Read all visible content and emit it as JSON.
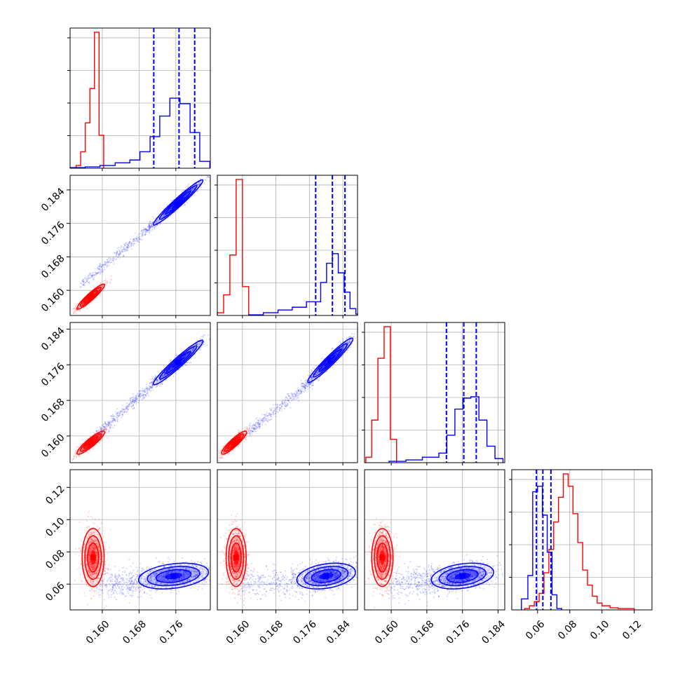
{
  "chart_data": {
    "type": "corner",
    "parameters": 4,
    "series": [
      {
        "name": "",
        "color": "#ff0000"
      },
      {
        "name": "",
        "color": "#0000ff"
      }
    ],
    "axes": {
      "p1": {
        "range": [
          0.153,
          0.1835
        ],
        "ticks": [
          "0.160",
          "0.168",
          "0.176"
        ],
        "tick_values": [
          0.16,
          0.168,
          0.176
        ]
      },
      "p2": {
        "range": [
          0.154,
          0.1875
        ],
        "ticks": [
          "0.160",
          "0.168",
          "0.176",
          "0.184"
        ],
        "tick_values": [
          0.16,
          0.168,
          0.176,
          0.184
        ]
      },
      "p3": {
        "range": [
          0.154,
          0.1855
        ],
        "ticks": [
          "0.160",
          "0.168",
          "0.176",
          "0.184"
        ],
        "tick_values": [
          0.16,
          0.168,
          0.176,
          0.184
        ]
      },
      "p4": {
        "range": [
          0.044,
          0.131
        ],
        "ticks": [
          "0.06",
          "0.08",
          "0.10",
          "0.12"
        ],
        "tick_values": [
          0.06,
          0.08,
          0.1,
          0.12
        ]
      }
    },
    "histograms": [
      {
        "param": "p1",
        "ymax": 1.0,
        "red": {
          "edges": [
            0.1543,
            0.1553,
            0.1563,
            0.1573,
            0.1583,
            0.1593,
            0.1603
          ],
          "counts": [
            0.02,
            0.12,
            0.33,
            0.58,
            0.99,
            0.24
          ]
        },
        "blue": {
          "edges": [
            0.153,
            0.1563,
            0.1595,
            0.1628,
            0.166,
            0.1682,
            0.1704,
            0.1725,
            0.1747,
            0.1769,
            0.1791,
            0.1812,
            0.1834
          ],
          "counts": [
            0.005,
            0.01,
            0.02,
            0.04,
            0.06,
            0.12,
            0.23,
            0.38,
            0.51,
            0.47,
            0.26,
            0.05
          ]
        },
        "quantiles": [
          0.1712,
          0.1767,
          0.1801
        ]
      },
      {
        "param": "p2",
        "ymax": 1.0,
        "red": {
          "edges": [
            0.154,
            0.1555,
            0.157,
            0.1585,
            0.16,
            0.1615
          ],
          "counts": [
            0.02,
            0.15,
            0.44,
            0.99,
            0.21
          ]
        },
        "blue": {
          "edges": [
            0.1615,
            0.165,
            0.1685,
            0.1719,
            0.1753,
            0.1787,
            0.1801,
            0.1815,
            0.1829,
            0.1843,
            0.1857,
            0.1871,
            0.1875
          ],
          "counts": [
            0.005,
            0.02,
            0.04,
            0.06,
            0.1,
            0.24,
            0.38,
            0.45,
            0.31,
            0.17,
            0.05,
            0.01
          ]
        },
        "quantiles": [
          0.1775,
          0.1815,
          0.1845
        ]
      },
      {
        "param": "p3",
        "ymax": 1.0,
        "red": {
          "edges": [
            0.1543,
            0.1556,
            0.157,
            0.1584,
            0.1598,
            0.1612
          ],
          "counts": [
            0.04,
            0.31,
            0.76,
            0.99,
            0.17
          ]
        },
        "blue": {
          "edges": [
            0.1595,
            0.1633,
            0.167,
            0.1707,
            0.1725,
            0.1743,
            0.1761,
            0.1779,
            0.1797,
            0.1815,
            0.1833,
            0.1851
          ],
          "counts": [
            0.01,
            0.02,
            0.04,
            0.07,
            0.2,
            0.39,
            0.47,
            0.48,
            0.31,
            0.12,
            0.03
          ]
        },
        "quantiles": [
          0.1724,
          0.1763,
          0.1791
        ]
      },
      {
        "param": "p4",
        "ymax": 1.0,
        "red": {
          "edges": [
            0.052,
            0.055,
            0.058,
            0.061,
            0.064,
            0.067,
            0.07,
            0.073,
            0.076,
            0.079,
            0.082,
            0.085,
            0.088,
            0.091,
            0.094,
            0.097,
            0.1,
            0.105,
            0.11,
            0.115,
            0.12
          ],
          "counts": [
            0.01,
            0.03,
            0.06,
            0.12,
            0.27,
            0.44,
            0.64,
            0.82,
            0.99,
            0.9,
            0.7,
            0.49,
            0.29,
            0.18,
            0.1,
            0.05,
            0.03,
            0.015,
            0.01,
            0.01
          ]
        },
        "blue": {
          "edges": [
            0.05,
            0.054,
            0.057,
            0.06,
            0.063,
            0.066,
            0.069,
            0.072,
            0.075
          ],
          "counts": [
            0.08,
            0.25,
            0.86,
            0.9,
            0.69,
            0.42,
            0.11,
            0.01
          ]
        },
        "quantiles": [
          0.0593,
          0.0633,
          0.0683
        ]
      }
    ],
    "pairs": [
      {
        "x": "p1",
        "y": "p2",
        "red": {
          "center": [
            0.1575,
            0.1585
          ],
          "sx": 0.0015,
          "sy": 0.0015,
          "rho": 0.93,
          "n": 700
        },
        "blue": {
          "center": [
            0.1765,
            0.181
          ],
          "sx": 0.0027,
          "sy": 0.0027,
          "rho": 0.97,
          "n": 1000
        },
        "blue_tail": {
          "from": [
            0.1555,
            0.1615
          ],
          "to": [
            0.1715,
            0.176
          ],
          "n": 350,
          "spread": 0.0006
        }
      },
      {
        "x": "p1",
        "y": "p3",
        "red": {
          "center": [
            0.1575,
            0.1585
          ],
          "sx": 0.0015,
          "sy": 0.0013,
          "rho": 0.9,
          "n": 700
        },
        "blue": {
          "center": [
            0.1765,
            0.1765
          ],
          "sx": 0.0027,
          "sy": 0.0025,
          "rho": 0.96,
          "n": 1000
        },
        "blue_tail": {
          "from": [
            0.1585,
            0.16
          ],
          "to": [
            0.172,
            0.1725
          ],
          "n": 350,
          "spread": 0.0006
        }
      },
      {
        "x": "p2",
        "y": "p3",
        "red": {
          "center": [
            0.158,
            0.1585
          ],
          "sx": 0.0015,
          "sy": 0.0013,
          "rho": 0.9,
          "n": 700
        },
        "blue": {
          "center": [
            0.181,
            0.177
          ],
          "sx": 0.0027,
          "sy": 0.0025,
          "rho": 0.96,
          "n": 1000
        },
        "blue_tail": {
          "from": [
            0.1615,
            0.161
          ],
          "to": [
            0.177,
            0.1725
          ],
          "n": 350,
          "spread": 0.0006
        }
      },
      {
        "x": "p1",
        "y": "p4",
        "red": {
          "center": [
            0.158,
            0.0765
          ],
          "sx": 0.0012,
          "sy": 0.009,
          "rho": 0.0,
          "n": 900
        },
        "blue": {
          "center": [
            0.1755,
            0.065
          ],
          "sx": 0.0038,
          "sy": 0.004,
          "rho": 0.3,
          "n": 1200
        },
        "blue_tail": {
          "from": [
            0.1595,
            0.06
          ],
          "to": [
            0.169,
            0.062
          ],
          "n": 300,
          "spread": 0.002
        }
      },
      {
        "x": "p2",
        "y": "p4",
        "red": {
          "center": [
            0.1585,
            0.0765
          ],
          "sx": 0.0012,
          "sy": 0.009,
          "rho": 0.0,
          "n": 900
        },
        "blue": {
          "center": [
            0.18,
            0.065
          ],
          "sx": 0.0035,
          "sy": 0.004,
          "rho": 0.3,
          "n": 1200
        },
        "blue_tail": {
          "from": [
            0.16,
            0.06
          ],
          "to": [
            0.174,
            0.062
          ],
          "n": 300,
          "spread": 0.002
        }
      },
      {
        "x": "p3",
        "y": "p4",
        "red": {
          "center": [
            0.158,
            0.0765
          ],
          "sx": 0.0012,
          "sy": 0.009,
          "rho": 0.0,
          "n": 900
        },
        "blue": {
          "center": [
            0.176,
            0.065
          ],
          "sx": 0.0035,
          "sy": 0.004,
          "rho": 0.3,
          "n": 1200
        },
        "blue_tail": {
          "from": [
            0.16,
            0.06
          ],
          "to": [
            0.17,
            0.062
          ],
          "n": 300,
          "spread": 0.002
        }
      }
    ],
    "grid": true,
    "legend": "none"
  }
}
